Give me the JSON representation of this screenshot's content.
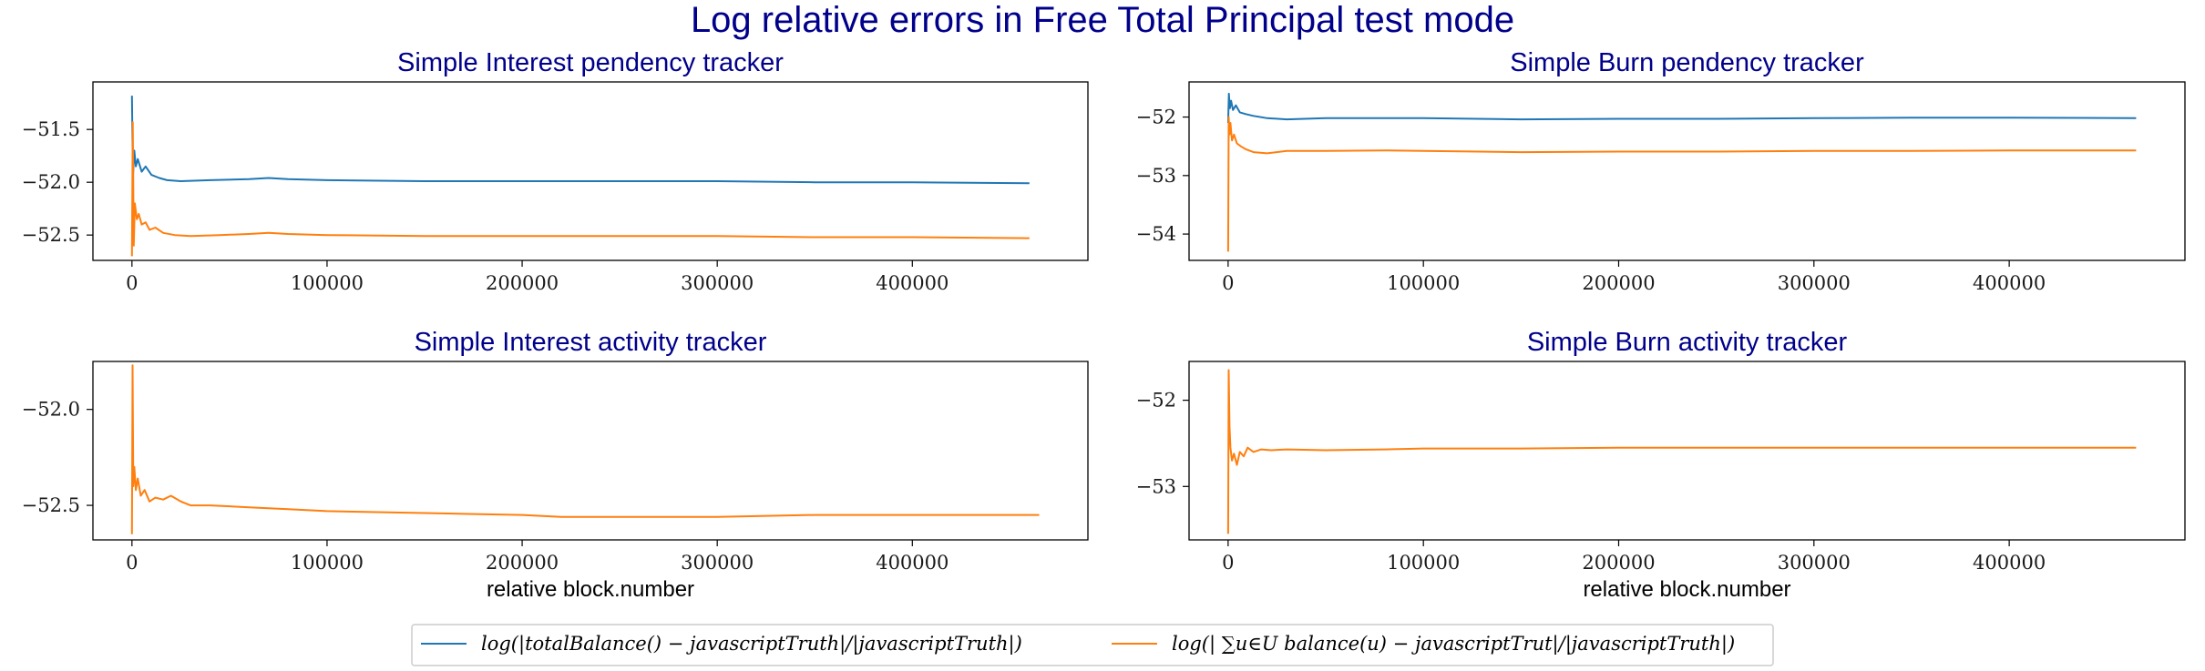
{
  "title": "Log relative errors in Free Total Principal test mode",
  "legend": [
    {
      "label": "log(|totalBalance() − javascriptTruth|/|javascriptTruth|)",
      "color": "#1f77b4"
    },
    {
      "label": "log(| ∑u∈U balance(u) − javascriptTrut|/|javascriptTruth|)",
      "color": "#ff7f0e"
    }
  ],
  "chart_data": [
    {
      "type": "line",
      "title": "Simple Interest pendency tracker",
      "xlabel": "",
      "xlim": [
        -20000,
        490000
      ],
      "ylim": [
        -52.74,
        -51.05
      ],
      "xticks": [
        0,
        100000,
        200000,
        300000,
        400000
      ],
      "xtick_labels": [
        "0",
        "100000",
        "200000",
        "300000",
        "400000"
      ],
      "yticks": [
        -51.5,
        -52.0,
        -52.5
      ],
      "ytick_labels": [
        "−51.5",
        "−52.0",
        "−52.5"
      ],
      "series": [
        {
          "color": "#1f77b4",
          "x": [
            0,
            500,
            1200,
            2000,
            3000,
            5000,
            7000,
            10000,
            14000,
            18000,
            25000,
            40000,
            60000,
            70000,
            80000,
            100000,
            150000,
            200000,
            250000,
            300000,
            350000,
            400000,
            460000
          ],
          "y": [
            -51.18,
            -51.95,
            -51.7,
            -51.85,
            -51.78,
            -51.9,
            -51.85,
            -51.93,
            -51.96,
            -51.98,
            -51.99,
            -51.98,
            -51.97,
            -51.96,
            -51.97,
            -51.98,
            -51.99,
            -51.99,
            -51.99,
            -51.99,
            -52.0,
            -52.0,
            -52.01
          ]
        },
        {
          "color": "#ff7f0e",
          "x": [
            0,
            400,
            900,
            1500,
            2500,
            3500,
            5000,
            7000,
            9000,
            12000,
            16000,
            22000,
            30000,
            45000,
            60000,
            70000,
            80000,
            100000,
            150000,
            200000,
            250000,
            300000,
            350000,
            400000,
            460000
          ],
          "y": [
            -52.7,
            -51.43,
            -52.6,
            -52.2,
            -52.35,
            -52.3,
            -52.4,
            -52.38,
            -52.45,
            -52.43,
            -52.48,
            -52.5,
            -52.51,
            -52.5,
            -52.49,
            -52.48,
            -52.49,
            -52.5,
            -52.51,
            -52.51,
            -52.51,
            -52.51,
            -52.52,
            -52.52,
            -52.53
          ]
        }
      ]
    },
    {
      "type": "line",
      "title": "Simple Burn pendency tracker",
      "xlabel": "",
      "xlim": [
        -20000,
        490000
      ],
      "ylim": [
        -54.45,
        -51.4
      ],
      "xticks": [
        0,
        100000,
        200000,
        300000,
        400000
      ],
      "xtick_labels": [
        "0",
        "100000",
        "200000",
        "300000",
        "400000"
      ],
      "yticks": [
        -52,
        -53,
        -54
      ],
      "ytick_labels": [
        "−52",
        "−53",
        "−54"
      ],
      "series": [
        {
          "color": "#1f77b4",
          "x": [
            0,
            400,
            900,
            1500,
            2500,
            4000,
            6000,
            9000,
            13000,
            20000,
            30000,
            50000,
            80000,
            100000,
            150000,
            200000,
            250000,
            300000,
            350000,
            400000,
            465000
          ],
          "y": [
            -52.1,
            -51.6,
            -51.85,
            -51.72,
            -51.88,
            -51.8,
            -51.92,
            -51.95,
            -51.98,
            -52.02,
            -52.04,
            -52.02,
            -52.02,
            -52.02,
            -52.04,
            -52.03,
            -52.03,
            -52.02,
            -52.01,
            -52.01,
            -52.02
          ]
        },
        {
          "color": "#ff7f0e",
          "x": [
            0,
            300,
            700,
            1200,
            2000,
            3000,
            4500,
            6500,
            9000,
            13000,
            20000,
            30000,
            50000,
            80000,
            100000,
            150000,
            200000,
            250000,
            300000,
            350000,
            400000,
            465000
          ],
          "y": [
            -54.3,
            -52.0,
            -52.3,
            -52.1,
            -52.4,
            -52.3,
            -52.45,
            -52.5,
            -52.55,
            -52.6,
            -52.62,
            -52.58,
            -52.58,
            -52.57,
            -52.58,
            -52.6,
            -52.59,
            -52.59,
            -52.58,
            -52.58,
            -52.57,
            -52.57
          ]
        }
      ]
    },
    {
      "type": "line",
      "title": "Simple Interest activity tracker",
      "xlabel": "relative block.number",
      "xlim": [
        -20000,
        490000
      ],
      "ylim": [
        -52.68,
        -51.75
      ],
      "xticks": [
        0,
        100000,
        200000,
        300000,
        400000
      ],
      "xtick_labels": [
        "0",
        "100000",
        "200000",
        "300000",
        "400000"
      ],
      "yticks": [
        -52.0,
        -52.5
      ],
      "ytick_labels": [
        "−52.0",
        "−52.5"
      ],
      "series": [
        {
          "color": "#ff7f0e",
          "x": [
            0,
            300,
            700,
            1200,
            2000,
            3000,
            4500,
            6500,
            9000,
            12000,
            16000,
            20000,
            25000,
            30000,
            40000,
            60000,
            80000,
            100000,
            150000,
            200000,
            220000,
            250000,
            300000,
            350000,
            400000,
            465000
          ],
          "y": [
            -52.65,
            -51.77,
            -52.4,
            -52.3,
            -52.42,
            -52.36,
            -52.45,
            -52.42,
            -52.48,
            -52.46,
            -52.47,
            -52.45,
            -52.48,
            -52.5,
            -52.5,
            -52.51,
            -52.52,
            -52.53,
            -52.54,
            -52.55,
            -52.56,
            -52.56,
            -52.56,
            -52.55,
            -52.55,
            -52.55
          ]
        }
      ]
    },
    {
      "type": "line",
      "title": "Simple Burn activity tracker",
      "xlabel": "relative block.number",
      "xlim": [
        -20000,
        490000
      ],
      "ylim": [
        -53.62,
        -51.55
      ],
      "xticks": [
        0,
        100000,
        200000,
        300000,
        400000
      ],
      "xtick_labels": [
        "0",
        "100000",
        "200000",
        "300000",
        "400000"
      ],
      "yticks": [
        -52,
        -53
      ],
      "ytick_labels": [
        "−52",
        "−53"
      ],
      "series": [
        {
          "color": "#ff7f0e",
          "x": [
            0,
            300,
            700,
            1200,
            2000,
            3000,
            4500,
            6000,
            8000,
            10000,
            13000,
            17000,
            22000,
            30000,
            50000,
            80000,
            100000,
            150000,
            200000,
            250000,
            300000,
            350000,
            400000,
            465000
          ],
          "y": [
            -53.55,
            -51.65,
            -52.3,
            -52.55,
            -52.7,
            -52.62,
            -52.75,
            -52.6,
            -52.65,
            -52.55,
            -52.6,
            -52.57,
            -52.58,
            -52.57,
            -52.58,
            -52.57,
            -52.56,
            -52.56,
            -52.55,
            -52.55,
            -52.55,
            -52.55,
            -52.55,
            -52.55
          ]
        }
      ]
    }
  ]
}
